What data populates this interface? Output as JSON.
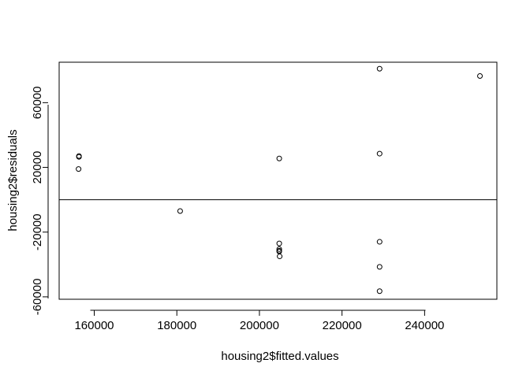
{
  "chart_data": {
    "type": "scatter",
    "title": "",
    "xlabel": "housing2$fitted.values",
    "ylabel": "housing2$residuals",
    "xlim": [
      151500,
      257500
    ],
    "ylim": [
      -61500,
      85000
    ],
    "x_ticks": [
      160000,
      180000,
      200000,
      220000,
      240000
    ],
    "x_tick_labels": [
      "160000",
      "180000",
      "200000",
      "220000",
      "240000"
    ],
    "y_ticks": [
      -60000,
      -20000,
      20000,
      60000
    ],
    "y_tick_labels": [
      "-60000",
      "-20000",
      "20000",
      "60000"
    ],
    "grid": false,
    "hline": 0,
    "marker": "open-circle",
    "points": [
      {
        "x": 156300,
        "y": 27000
      },
      {
        "x": 156300,
        "y": 26500
      },
      {
        "x": 156200,
        "y": 19000
      },
      {
        "x": 180800,
        "y": -7000
      },
      {
        "x": 204800,
        "y": 25500
      },
      {
        "x": 204800,
        "y": -27000
      },
      {
        "x": 204800,
        "y": -30500
      },
      {
        "x": 204800,
        "y": -31500
      },
      {
        "x": 204800,
        "y": -32000
      },
      {
        "x": 204900,
        "y": -35000
      },
      {
        "x": 229100,
        "y": 81000
      },
      {
        "x": 229100,
        "y": 28500
      },
      {
        "x": 229100,
        "y": -26000
      },
      {
        "x": 229100,
        "y": -41500
      },
      {
        "x": 229100,
        "y": -56500
      },
      {
        "x": 253400,
        "y": 76500
      }
    ]
  }
}
